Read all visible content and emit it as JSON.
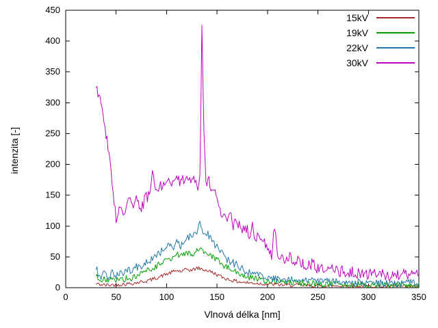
{
  "chart_data": {
    "type": "line",
    "title": "",
    "xlabel": "Vlnová délka [nm]",
    "ylabel": "intenzita [-]",
    "xlim": [
      0,
      350
    ],
    "ylim": [
      0,
      450
    ],
    "xticks": [
      0,
      50,
      100,
      150,
      200,
      250,
      300,
      350
    ],
    "yticks": [
      0,
      50,
      100,
      150,
      200,
      250,
      300,
      350,
      400,
      450
    ],
    "grid": false,
    "legend_position": "top-right-inside",
    "background": "#ffffff",
    "axis_color": "#000000",
    "noise_seed": 42,
    "sample_step": 1,
    "series": [
      {
        "name": "15kV",
        "color": "#a52a2a",
        "noise": 3,
        "keypoints": [
          [
            30,
            6
          ],
          [
            40,
            4
          ],
          [
            50,
            5
          ],
          [
            60,
            6
          ],
          [
            70,
            8
          ],
          [
            80,
            11
          ],
          [
            85,
            13
          ],
          [
            90,
            16
          ],
          [
            95,
            19
          ],
          [
            100,
            22
          ],
          [
            105,
            25
          ],
          [
            110,
            28
          ],
          [
            115,
            26
          ],
          [
            120,
            30
          ],
          [
            125,
            28
          ],
          [
            130,
            32
          ],
          [
            135,
            30
          ],
          [
            140,
            28
          ],
          [
            145,
            25
          ],
          [
            150,
            21
          ],
          [
            155,
            17
          ],
          [
            160,
            14
          ],
          [
            165,
            12
          ],
          [
            170,
            10
          ],
          [
            175,
            9
          ],
          [
            180,
            8
          ],
          [
            190,
            7
          ],
          [
            200,
            6
          ],
          [
            210,
            5
          ],
          [
            220,
            4
          ],
          [
            230,
            4
          ],
          [
            240,
            3
          ],
          [
            250,
            3
          ],
          [
            260,
            3
          ],
          [
            270,
            3
          ],
          [
            280,
            3
          ],
          [
            290,
            3
          ],
          [
            300,
            2
          ],
          [
            310,
            2
          ],
          [
            320,
            2
          ],
          [
            330,
            2
          ],
          [
            340,
            2
          ],
          [
            350,
            2
          ]
        ]
      },
      {
        "name": "19kV",
        "color": "#00a000",
        "noise": 5,
        "keypoints": [
          [
            30,
            20
          ],
          [
            34,
            8
          ],
          [
            38,
            14
          ],
          [
            42,
            10
          ],
          [
            46,
            14
          ],
          [
            50,
            12
          ],
          [
            54,
            15
          ],
          [
            58,
            13
          ],
          [
            62,
            17
          ],
          [
            66,
            15
          ],
          [
            70,
            19
          ],
          [
            74,
            21
          ],
          [
            78,
            26
          ],
          [
            82,
            29
          ],
          [
            86,
            32
          ],
          [
            90,
            35
          ],
          [
            94,
            38
          ],
          [
            98,
            42
          ],
          [
            102,
            46
          ],
          [
            106,
            50
          ],
          [
            110,
            54
          ],
          [
            114,
            50
          ],
          [
            118,
            54
          ],
          [
            122,
            58
          ],
          [
            126,
            55
          ],
          [
            130,
            60
          ],
          [
            134,
            62
          ],
          [
            138,
            56
          ],
          [
            142,
            52
          ],
          [
            146,
            49
          ],
          [
            150,
            45
          ],
          [
            154,
            40
          ],
          [
            158,
            35
          ],
          [
            162,
            31
          ],
          [
            166,
            28
          ],
          [
            170,
            25
          ],
          [
            174,
            22
          ],
          [
            178,
            19
          ],
          [
            182,
            17
          ],
          [
            186,
            15
          ],
          [
            190,
            14
          ],
          [
            195,
            12
          ],
          [
            200,
            11
          ],
          [
            210,
            10
          ],
          [
            220,
            9
          ],
          [
            230,
            8
          ],
          [
            240,
            7
          ],
          [
            250,
            6
          ],
          [
            260,
            6
          ],
          [
            270,
            5
          ],
          [
            280,
            5
          ],
          [
            290,
            5
          ],
          [
            300,
            5
          ],
          [
            310,
            4
          ],
          [
            320,
            4
          ],
          [
            330,
            4
          ],
          [
            340,
            4
          ],
          [
            350,
            4
          ]
        ]
      },
      {
        "name": "22kV",
        "color": "#1f77a8",
        "noise": 6,
        "keypoints": [
          [
            30,
            34
          ],
          [
            34,
            14
          ],
          [
            38,
            24
          ],
          [
            42,
            17
          ],
          [
            46,
            24
          ],
          [
            50,
            20
          ],
          [
            54,
            26
          ],
          [
            58,
            22
          ],
          [
            62,
            30
          ],
          [
            66,
            26
          ],
          [
            70,
            34
          ],
          [
            74,
            30
          ],
          [
            78,
            38
          ],
          [
            82,
            42
          ],
          [
            86,
            46
          ],
          [
            90,
            54
          ],
          [
            94,
            58
          ],
          [
            98,
            64
          ],
          [
            102,
            70
          ],
          [
            106,
            64
          ],
          [
            110,
            74
          ],
          [
            114,
            68
          ],
          [
            118,
            78
          ],
          [
            122,
            82
          ],
          [
            126,
            86
          ],
          [
            130,
            92
          ],
          [
            133,
            104
          ],
          [
            136,
            86
          ],
          [
            140,
            90
          ],
          [
            144,
            78
          ],
          [
            148,
            70
          ],
          [
            152,
            62
          ],
          [
            156,
            54
          ],
          [
            160,
            46
          ],
          [
            164,
            42
          ],
          [
            168,
            38
          ],
          [
            172,
            34
          ],
          [
            176,
            30
          ],
          [
            180,
            26
          ],
          [
            185,
            22
          ],
          [
            190,
            20
          ],
          [
            195,
            18
          ],
          [
            200,
            16
          ],
          [
            210,
            15
          ],
          [
            220,
            13
          ],
          [
            230,
            12
          ],
          [
            240,
            11
          ],
          [
            250,
            10
          ],
          [
            260,
            10
          ],
          [
            270,
            9
          ],
          [
            280,
            8
          ],
          [
            290,
            8
          ],
          [
            300,
            8
          ],
          [
            310,
            7
          ],
          [
            320,
            8
          ],
          [
            330,
            6
          ],
          [
            340,
            8
          ],
          [
            350,
            7
          ]
        ]
      },
      {
        "name": "30kV",
        "color": "#bf00bf",
        "noise": 9,
        "keypoints": [
          [
            30,
            328
          ],
          [
            33,
            310
          ],
          [
            38,
            268
          ],
          [
            43,
            222
          ],
          [
            46,
            170
          ],
          [
            50,
            108
          ],
          [
            54,
            132
          ],
          [
            58,
            118
          ],
          [
            62,
            150
          ],
          [
            66,
            130
          ],
          [
            70,
            148
          ],
          [
            74,
            122
          ],
          [
            78,
            142
          ],
          [
            82,
            150
          ],
          [
            86,
            183
          ],
          [
            90,
            152
          ],
          [
            94,
            168
          ],
          [
            98,
            162
          ],
          [
            102,
            178
          ],
          [
            106,
            165
          ],
          [
            110,
            182
          ],
          [
            114,
            170
          ],
          [
            118,
            178
          ],
          [
            122,
            168
          ],
          [
            126,
            183
          ],
          [
            130,
            160
          ],
          [
            133,
            178
          ],
          [
            135,
            423
          ],
          [
            137,
            250
          ],
          [
            139,
            168
          ],
          [
            142,
            178
          ],
          [
            145,
            155
          ],
          [
            148,
            165
          ],
          [
            151,
            132
          ],
          [
            154,
            120
          ],
          [
            157,
            128
          ],
          [
            160,
            110
          ],
          [
            163,
            122
          ],
          [
            166,
            100
          ],
          [
            170,
            108
          ],
          [
            174,
            95
          ],
          [
            178,
            100
          ],
          [
            182,
            88
          ],
          [
            185,
            98
          ],
          [
            188,
            80
          ],
          [
            192,
            84
          ],
          [
            196,
            74
          ],
          [
            200,
            64
          ],
          [
            204,
            54
          ],
          [
            207,
            104
          ],
          [
            210,
            56
          ],
          [
            214,
            50
          ],
          [
            218,
            46
          ],
          [
            222,
            50
          ],
          [
            226,
            42
          ],
          [
            230,
            45
          ],
          [
            235,
            40
          ],
          [
            240,
            36
          ],
          [
            245,
            40
          ],
          [
            250,
            30
          ],
          [
            255,
            33
          ],
          [
            260,
            27
          ],
          [
            265,
            31
          ],
          [
            270,
            24
          ],
          [
            275,
            28
          ],
          [
            280,
            22
          ],
          [
            285,
            26
          ],
          [
            290,
            23
          ],
          [
            295,
            26
          ],
          [
            300,
            20
          ],
          [
            305,
            24
          ],
          [
            310,
            20
          ],
          [
            315,
            23
          ],
          [
            320,
            18
          ],
          [
            325,
            22
          ],
          [
            330,
            19
          ],
          [
            335,
            23
          ],
          [
            340,
            18
          ],
          [
            345,
            28
          ],
          [
            350,
            22
          ]
        ]
      }
    ]
  },
  "legend": {
    "items": [
      {
        "label": "15kV"
      },
      {
        "label": "19kV"
      },
      {
        "label": "22kV"
      },
      {
        "label": "30kV"
      }
    ]
  }
}
